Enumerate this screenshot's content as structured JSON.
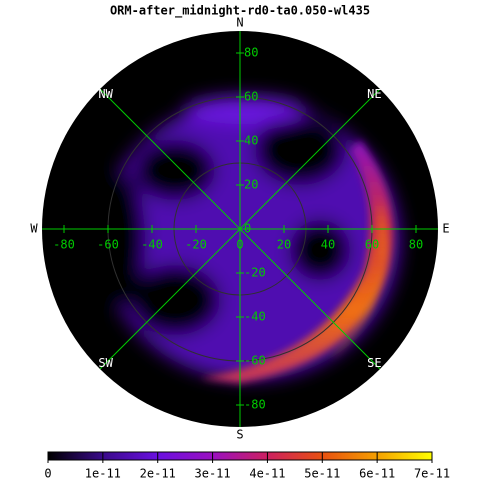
{
  "chart_data": {
    "type": "polar_map",
    "title": "ORM-after_midnight-rd0-ta0.050-wl435",
    "directions": [
      "N",
      "NE",
      "E",
      "SE",
      "S",
      "SW",
      "W",
      "NW"
    ],
    "xlim": [
      -90,
      90
    ],
    "ylim": [
      -90,
      90
    ],
    "xticks": [
      -80,
      -60,
      -40,
      -20,
      0,
      20,
      40,
      60,
      80
    ],
    "yticks": [
      80,
      60,
      40,
      20,
      0,
      -20,
      -40,
      -60,
      -80
    ],
    "rings": [
      30,
      60
    ],
    "axis_color": "#00cc00",
    "colorbar": {
      "lim": [
        0,
        7e-11
      ],
      "ticks": [
        0,
        {
          "value": 1e-11,
          "label": "1e-11"
        },
        {
          "value": 2e-11,
          "label": "2e-11"
        },
        {
          "value": 3e-11,
          "label": "3e-11"
        },
        {
          "value": 4e-11,
          "label": "4e-11"
        },
        {
          "value": 5e-11,
          "label": "5e-11"
        },
        {
          "value": 6e-11,
          "label": "6e-11"
        },
        {
          "value": 7e-11,
          "label": "7e-11"
        }
      ],
      "colors": [
        "#000000",
        "#3a0a8a",
        "#6a10e0",
        "#9a10c0",
        "#cc2060",
        "#e85010",
        "#f5a000",
        "#ffff00"
      ]
    }
  }
}
